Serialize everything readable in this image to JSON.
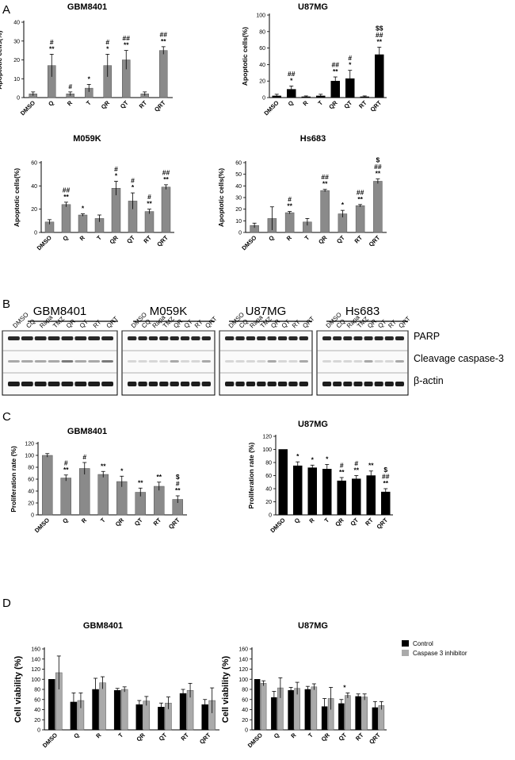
{
  "panel_labels": [
    "A",
    "B",
    "C",
    "D"
  ],
  "colors": {
    "gray_bar": "#8a8a8a",
    "black_bar": "#000000",
    "light_gray_bar": "#aaaaaa"
  },
  "chart_data": [
    {
      "id": "A1",
      "panel": "A",
      "type": "bar",
      "title": "GBM8401",
      "ylabel": "Apoptotic cells(%)",
      "ylim": [
        0,
        40
      ],
      "yticks": [
        0,
        10,
        20,
        30,
        40
      ],
      "categories": [
        "DMSO",
        "Q",
        "R",
        "T",
        "QR",
        "QT",
        "RT",
        "QRT"
      ],
      "values": [
        2,
        17,
        2,
        5,
        17,
        20,
        2,
        25
      ],
      "errors": [
        1,
        6,
        1,
        2,
        6,
        5,
        1,
        2
      ],
      "annotations": [
        [],
        [
          "#",
          "**"
        ],
        [
          "#"
        ],
        [
          "*"
        ],
        [
          "#",
          "*"
        ],
        [
          "##",
          "**"
        ],
        [],
        [
          "##",
          "**"
        ]
      ],
      "color": "gray"
    },
    {
      "id": "A2",
      "panel": "A",
      "type": "bar",
      "title": "U87MG",
      "ylabel": "Apoptotic cells(%)",
      "ylim": [
        0,
        100
      ],
      "yticks": [
        0,
        20,
        40,
        60,
        80,
        100
      ],
      "categories": [
        "DMSO",
        "Q",
        "R",
        "T",
        "QR",
        "QT",
        "RT",
        "QRT"
      ],
      "values": [
        2,
        10,
        1,
        2,
        20,
        23,
        1,
        52
      ],
      "errors": [
        2,
        4,
        1,
        2,
        5,
        10,
        1,
        9
      ],
      "annotations": [
        [],
        [
          "##",
          "*"
        ],
        [],
        [],
        [
          "##",
          "**"
        ],
        [
          "#",
          "*"
        ],
        [],
        [
          "$$",
          "##",
          "**"
        ]
      ],
      "color": "black"
    },
    {
      "id": "A3",
      "panel": "A",
      "type": "bar",
      "title": "M059K",
      "ylabel": "Apoptotic cells(%)",
      "ylim": [
        0,
        60
      ],
      "yticks": [
        0,
        20,
        40,
        60
      ],
      "categories": [
        "DMSO",
        "Q",
        "R",
        "T",
        "QR",
        "QT",
        "RT",
        "QRT"
      ],
      "values": [
        9,
        24,
        15,
        12,
        38,
        27,
        18,
        39
      ],
      "errors": [
        2,
        2,
        1,
        3,
        6,
        7,
        2,
        2
      ],
      "annotations": [
        [],
        [
          "##",
          "**"
        ],
        [
          "*"
        ],
        [],
        [
          "#",
          "*"
        ],
        [
          "#",
          "*"
        ],
        [
          "#",
          "**"
        ],
        [
          "##",
          "**"
        ]
      ],
      "color": "gray"
    },
    {
      "id": "A4",
      "panel": "A",
      "type": "bar",
      "title": "Hs683",
      "ylabel": "Apoptotic cells(%)",
      "ylim": [
        0,
        60
      ],
      "yticks": [
        0,
        10,
        20,
        30,
        40,
        50,
        60
      ],
      "categories": [
        "DMSO",
        "Q",
        "R",
        "T",
        "QR",
        "QT",
        "RT",
        "QRT"
      ],
      "values": [
        6,
        12,
        17,
        9,
        36,
        16,
        23,
        44
      ],
      "errors": [
        2,
        10,
        1,
        3,
        1,
        3,
        1,
        2
      ],
      "annotations": [
        [],
        [],
        [
          "#",
          "**"
        ],
        [],
        [
          "##",
          "**"
        ],
        [
          "*"
        ],
        [
          "##",
          "**"
        ],
        [
          "$",
          "##",
          "**"
        ]
      ],
      "color": "gray"
    },
    {
      "id": "C1",
      "panel": "C",
      "type": "bar",
      "title": "GBM8401",
      "ylabel": "Proliferation rate (%)",
      "ylim": [
        0,
        120
      ],
      "yticks": [
        0,
        20,
        40,
        60,
        80,
        100,
        120
      ],
      "categories": [
        "DMSO",
        "Q",
        "R",
        "T",
        "QR",
        "QT",
        "RT",
        "QRT"
      ],
      "values": [
        100,
        62,
        78,
        68,
        56,
        38,
        48,
        26
      ],
      "errors": [
        3,
        5,
        10,
        5,
        9,
        7,
        7,
        6
      ],
      "annotations": [
        [],
        [
          "#",
          "**"
        ],
        [
          "#"
        ],
        [
          "**"
        ],
        [
          "*"
        ],
        [
          "**"
        ],
        [
          "**"
        ],
        [
          "$",
          "#",
          "**"
        ]
      ],
      "color": "gray"
    },
    {
      "id": "C2",
      "panel": "C",
      "type": "bar",
      "title": "U87MG",
      "ylabel": "Proliferation rate (%)",
      "ylim": [
        0,
        120
      ],
      "yticks": [
        0,
        20,
        40,
        60,
        80,
        100,
        120
      ],
      "categories": [
        "DMSO",
        "Q",
        "R",
        "T",
        "QR",
        "QT",
        "RT",
        "QRT"
      ],
      "values": [
        100,
        75,
        72,
        70,
        52,
        55,
        60,
        35
      ],
      "errors": [
        0,
        6,
        4,
        7,
        5,
        5,
        7,
        5
      ],
      "annotations": [
        [],
        [
          "*"
        ],
        [
          "*"
        ],
        [
          "*"
        ],
        [
          "#",
          "**"
        ],
        [
          "#",
          "**"
        ],
        [
          "**"
        ],
        [
          "$",
          "##",
          "**"
        ]
      ],
      "color": "black"
    },
    {
      "id": "D1",
      "panel": "D",
      "type": "bar",
      "title": "GBM8401",
      "ylabel": "Cell viability (%)",
      "ylim": [
        0,
        160
      ],
      "yticks": [
        0,
        20,
        40,
        60,
        80,
        100,
        120,
        140,
        160
      ],
      "categories": [
        "DMSO",
        "Q",
        "R",
        "T",
        "QR",
        "QT",
        "RT",
        "QRT"
      ],
      "series": [
        {
          "name": "Control",
          "values": [
            100,
            55,
            80,
            78,
            50,
            45,
            72,
            50
          ],
          "errors": [
            0,
            18,
            22,
            4,
            8,
            8,
            8,
            10
          ]
        },
        {
          "name": "Caspase 3 inhibitor",
          "values": [
            113,
            58,
            93,
            80,
            57,
            53,
            78,
            58
          ],
          "errors": [
            33,
            15,
            12,
            5,
            9,
            12,
            14,
            25
          ]
        }
      ],
      "annotations": [
        [],
        [],
        [],
        [],
        [],
        [],
        [],
        []
      ]
    },
    {
      "id": "D2",
      "panel": "D",
      "type": "bar",
      "title": "U87MG",
      "ylabel": "Cell viability (%)",
      "ylim": [
        0,
        160
      ],
      "yticks": [
        0,
        20,
        40,
        60,
        80,
        100,
        120,
        140,
        160
      ],
      "categories": [
        "DMSO",
        "Q",
        "R",
        "T",
        "QR",
        "QT",
        "RT",
        "QRT"
      ],
      "series": [
        {
          "name": "Control",
          "values": [
            100,
            64,
            78,
            80,
            46,
            52,
            66,
            44
          ],
          "errors": [
            0,
            12,
            6,
            6,
            16,
            8,
            5,
            12
          ]
        },
        {
          "name": "Caspase 3 inhibitor",
          "values": [
            92,
            83,
            82,
            85,
            62,
            68,
            65,
            48
          ],
          "errors": [
            5,
            20,
            12,
            6,
            22,
            5,
            6,
            8
          ]
        }
      ],
      "annotations": [
        [],
        [],
        [],
        [],
        [],
        [
          "*"
        ],
        [],
        []
      ],
      "legend": [
        "Control",
        "Caspase 3 inhibitor"
      ]
    }
  ],
  "western_blot": {
    "cell_lines": [
      "GBM8401",
      "M059K",
      "U87MG",
      "Hs683"
    ],
    "lanes": [
      "DMSO",
      "CQ",
      "Rapa",
      "TMZ",
      "QR",
      "QT",
      "RT",
      "QRT"
    ],
    "bands": [
      "PARP",
      "Cleavage caspase-3",
      "β-actin"
    ]
  }
}
